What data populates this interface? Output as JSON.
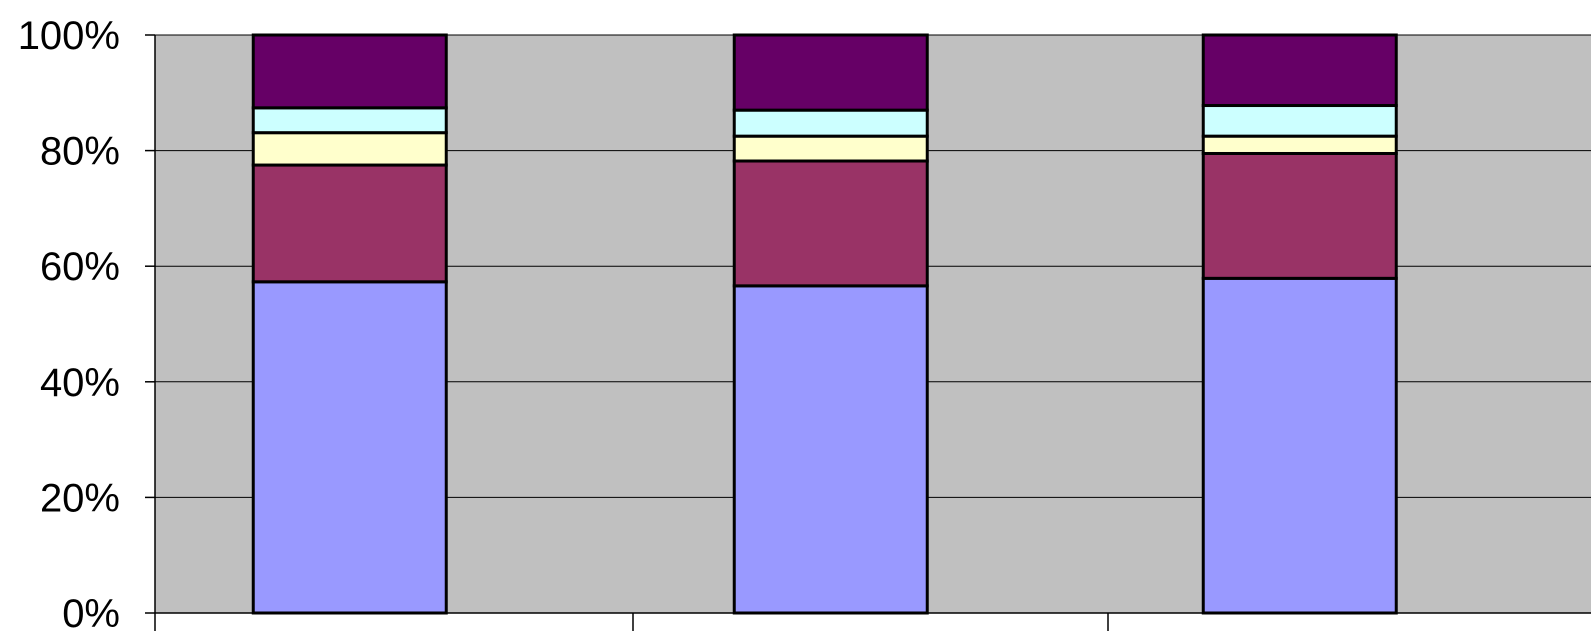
{
  "chart_data": {
    "type": "bar",
    "stacked": true,
    "percent_stacked": true,
    "categories": [
      "",
      "",
      ""
    ],
    "series": [
      {
        "values": [
          57.3,
          56.6,
          57.9
        ],
        "color": "#9999ff"
      },
      {
        "values": [
          20.2,
          21.6,
          21.6
        ],
        "color": "#993366"
      },
      {
        "values": [
          5.6,
          4.3,
          3.0
        ],
        "color": "#ffffcc"
      },
      {
        "values": [
          4.3,
          4.5,
          5.3
        ],
        "color": "#ccffff"
      },
      {
        "values": [
          12.6,
          13.0,
          12.2
        ],
        "color": "#660066"
      }
    ],
    "ylim": [
      0,
      100
    ],
    "yticks": [
      "0%",
      "20%",
      "40%",
      "60%",
      "80%",
      "100%"
    ],
    "grid": true,
    "plot_background": "#c0c0c0",
    "title": "",
    "xlabel": "",
    "ylabel": ""
  }
}
